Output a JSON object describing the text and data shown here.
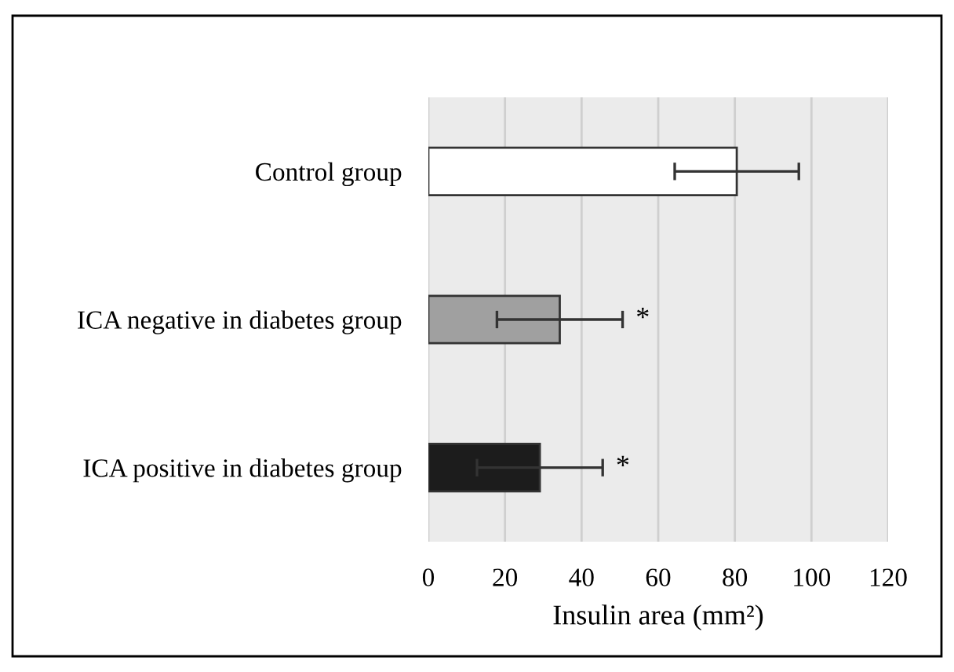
{
  "chart_data": {
    "type": "bar",
    "orientation": "horizontal",
    "categories": [
      "Control group",
      "ICA negative in diabetes group",
      "ICA positive in diabetes group"
    ],
    "values": [
      80.5,
      34.3,
      29.1
    ],
    "colors": [
      "#ffffff",
      "#a0a0a0",
      "#1c1c1c"
    ],
    "errors": [
      16.2,
      16.4,
      16.4
    ],
    "xlabel": "Insulin area (mm²)",
    "xlim": [
      0,
      120
    ],
    "xticks": [
      0,
      20,
      40,
      60,
      80,
      100,
      120
    ],
    "grid": "x",
    "annotations": [
      "*",
      "*"
    ]
  }
}
